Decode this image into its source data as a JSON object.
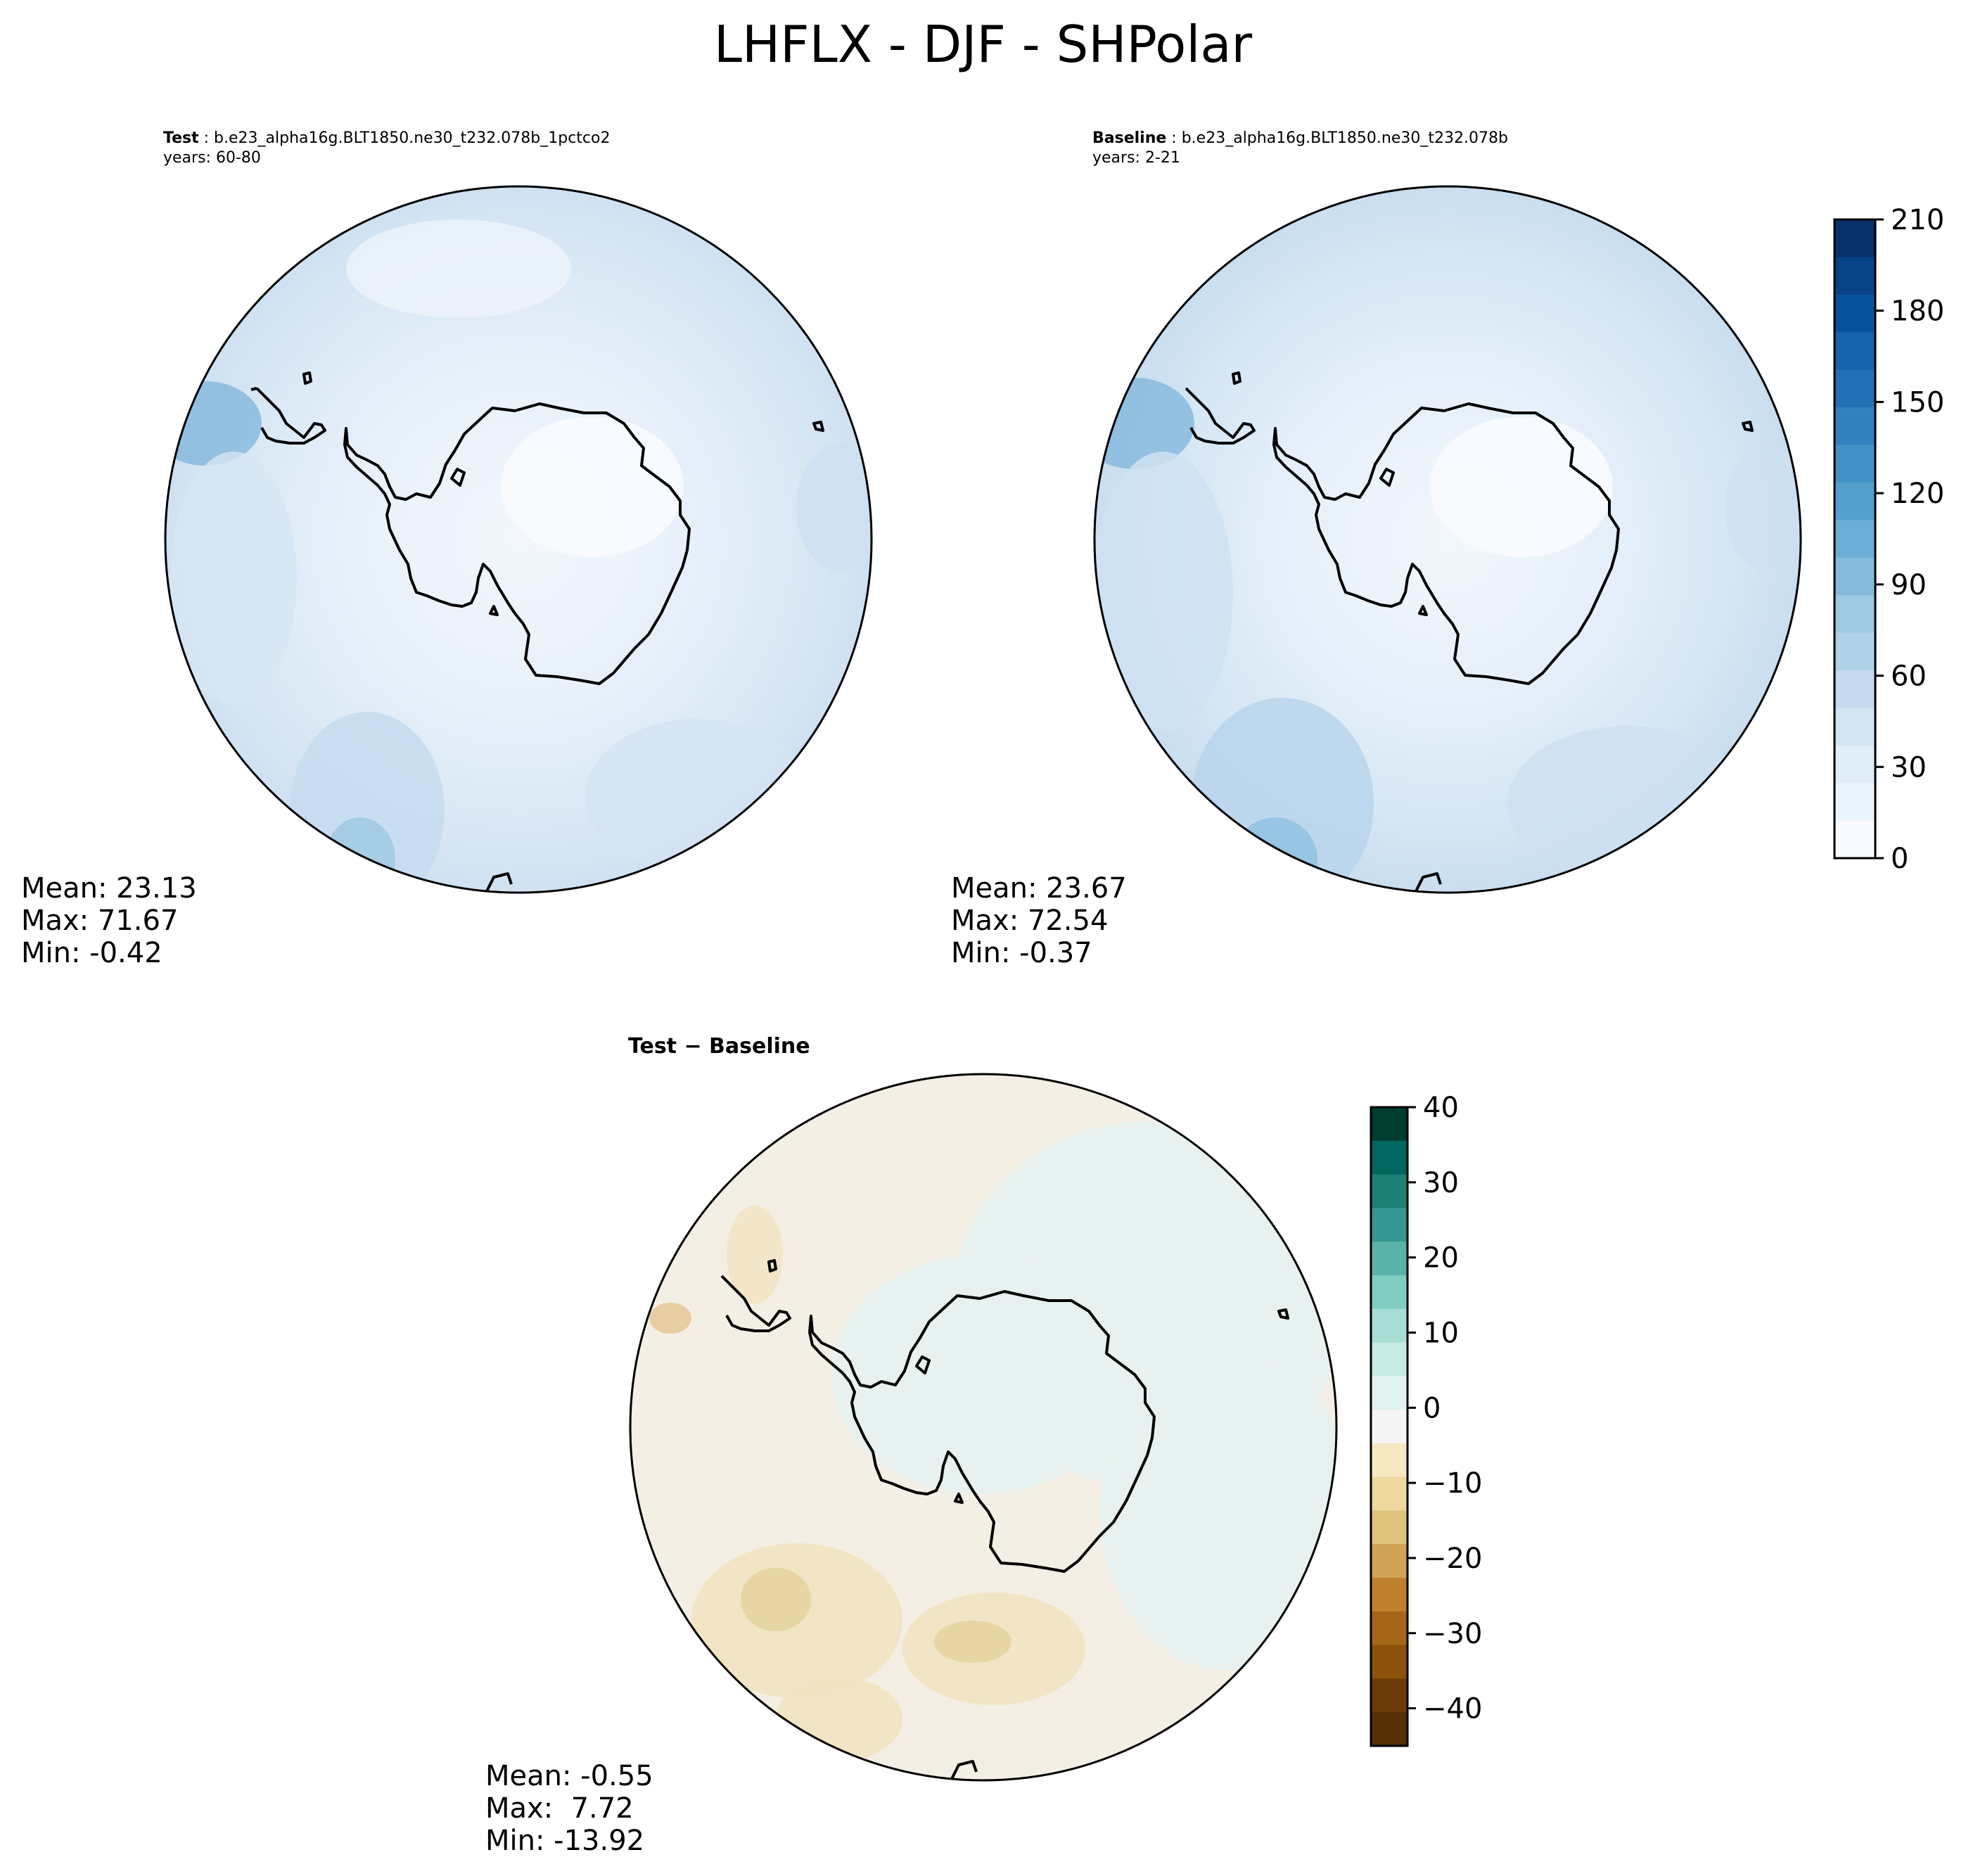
{
  "figure": {
    "title": "LHFLX - DJF - SHPolar"
  },
  "panels": {
    "test": {
      "label": "Test",
      "separator": ":",
      "case": "b.e23_alpha16g.BLT1850.ne30_t232.078b_1pctco2",
      "years": "years: 60-80",
      "stats": {
        "mean": "Mean: 23.13",
        "max": "Max: 71.67",
        "min": "Min: -0.42"
      }
    },
    "baseline": {
      "label": "Baseline",
      "separator": ":",
      "case": "b.e23_alpha16g.BLT1850.ne30_t232.078b",
      "years": "years: 2-21",
      "stats": {
        "mean": "Mean: 23.67",
        "max": "Max: 72.54",
        "min": "Min: -0.37"
      }
    },
    "difference": {
      "title": "Test − Baseline",
      "stats": {
        "mean": "Mean: -0.55",
        "max": "Max:  7.72",
        "min": "Min: -13.92"
      }
    }
  },
  "colorbars": {
    "main": {
      "ticks": [
        "0",
        "30",
        "60",
        "90",
        "120",
        "150",
        "180",
        "210"
      ],
      "range": [
        0,
        210
      ],
      "colors": [
        "#f7fbff",
        "#ebf3fb",
        "#e0ecf8",
        "#d3e4f3",
        "#c6dbef",
        "#b0d2e8",
        "#9ecae1",
        "#85bcdc",
        "#6baed6",
        "#559fcd",
        "#4292c6",
        "#3181bd",
        "#2171b5",
        "#1563aa",
        "#08519c",
        "#084287",
        "#08306b"
      ]
    },
    "diff": {
      "ticks": [
        "40",
        "30",
        "20",
        "10",
        "0",
        "−10",
        "−20",
        "−30",
        "−40"
      ],
      "range": [
        -45,
        40
      ],
      "colors": [
        "#003c30",
        "#01665e",
        "#1d7f75",
        "#35978f",
        "#5ab2a8",
        "#80cdc1",
        "#a8ddd5",
        "#c7eae5",
        "#e2f2ef",
        "#f5f5f5",
        "#f6e8c3",
        "#efd89e",
        "#dfc27d",
        "#cfa255",
        "#bf812d",
        "#a36618",
        "#8c510a",
        "#6b3c07",
        "#543005"
      ]
    }
  },
  "map_colors": {
    "land": "#000000",
    "test_base": "#e4eef8",
    "diff_base": "#f4efe4"
  }
}
